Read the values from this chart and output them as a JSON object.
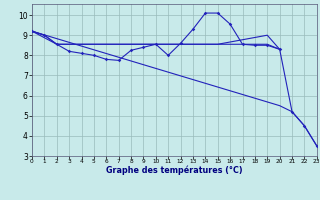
{
  "xlabel": "Graphe des températures (°C)",
  "background_color": "#c8eaea",
  "line_color": "#2222bb",
  "xlim": [
    0,
    23
  ],
  "ylim": [
    3,
    10.55
  ],
  "yticks": [
    3,
    4,
    5,
    6,
    7,
    8,
    9,
    10
  ],
  "xticks": [
    0,
    1,
    2,
    3,
    4,
    5,
    6,
    7,
    8,
    9,
    10,
    11,
    12,
    13,
    14,
    15,
    16,
    17,
    18,
    19,
    20,
    21,
    22,
    23
  ],
  "hours": [
    0,
    1,
    2,
    3,
    4,
    5,
    6,
    7,
    8,
    9,
    10,
    11,
    12,
    13,
    14,
    15,
    16,
    17,
    18,
    19,
    20,
    21,
    22,
    23
  ],
  "line_main": [
    9.2,
    9.0,
    8.55,
    8.2,
    8.1,
    8.0,
    7.8,
    7.75,
    8.25,
    8.4,
    8.55,
    8.0,
    8.6,
    9.3,
    10.1,
    10.1,
    9.55,
    8.55,
    8.5,
    8.5,
    8.3,
    5.2,
    4.5,
    3.5
  ],
  "line_flat_x": [
    0,
    1,
    2,
    3,
    4,
    5,
    6,
    7,
    8,
    9,
    10,
    11,
    12,
    13,
    14,
    15,
    16,
    17,
    18,
    19,
    20
  ],
  "line_flat_y": [
    9.2,
    9.0,
    8.55,
    8.55,
    8.55,
    8.55,
    8.55,
    8.55,
    8.55,
    8.55,
    8.55,
    8.55,
    8.55,
    8.55,
    8.55,
    8.55,
    8.55,
    8.55,
    8.55,
    8.55,
    8.3
  ],
  "line_upper_x": [
    0,
    2,
    15,
    19,
    20
  ],
  "line_upper_y": [
    9.2,
    8.55,
    8.55,
    9.0,
    8.3
  ],
  "line_diag_x": [
    0,
    20,
    21,
    22,
    23
  ],
  "line_diag_y": [
    9.2,
    5.5,
    5.2,
    4.5,
    3.5
  ]
}
